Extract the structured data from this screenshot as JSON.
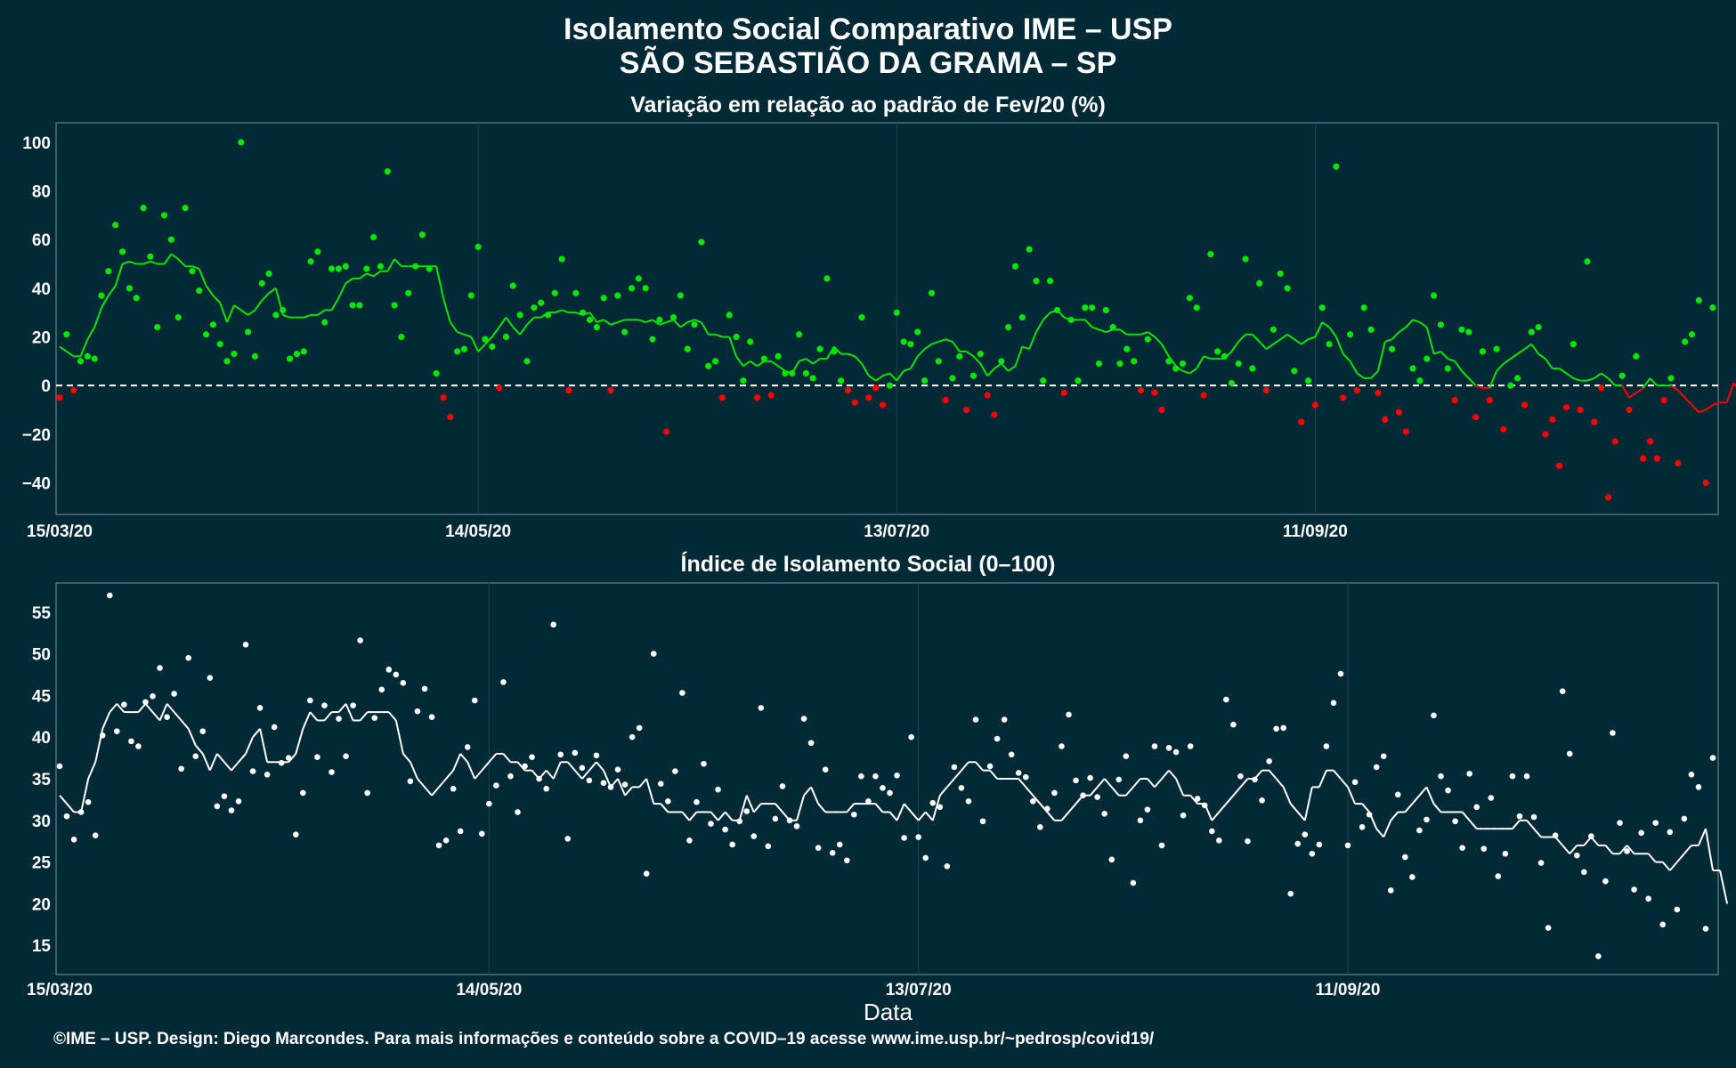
{
  "title_line1": "Isolamento Social Comparativo IME – USP",
  "title_line2": "SÃO SEBASTIÃO DA GRAMA – SP",
  "footer_xlabel": "Data",
  "footer_caption": "©IME – USP. Design: Diego Marcondes. Para mais informações e conteúdo sobre a COVID–19 acesse www.ime.usp.br/~pedrosp/covid19/",
  "colors": {
    "background": "#022a36",
    "positive": "#00e600",
    "negative": "#ff0000",
    "index": "#ffffff",
    "zero_line": "#ffffff"
  },
  "chart_data": [
    {
      "type": "scatter",
      "title": "Variação em relação ao padrão de Fev/20 (%)",
      "x_start": "15/03/20",
      "x_end": "14/11/20",
      "x_ticks": [
        "15/03/20",
        "14/05/20",
        "13/07/20",
        "11/09/20"
      ],
      "y_ticks": [
        100,
        80,
        60,
        40,
        20,
        0,
        -20,
        -40
      ],
      "ylim": [
        -53,
        108
      ],
      "zero_line": true,
      "series": [
        {
          "role": "daily_points",
          "color_rule": "green if value >= 0, red if value < 0",
          "values": [
            -5,
            21,
            -2,
            10,
            12,
            11,
            37,
            47,
            66,
            55,
            40,
            36,
            73,
            53,
            24,
            70,
            60,
            28,
            73,
            47,
            39,
            21,
            25,
            17,
            10,
            13,
            100,
            22,
            12,
            42,
            46,
            29,
            31,
            11,
            13,
            14,
            51,
            55,
            26,
            48,
            48,
            49,
            33,
            33,
            48,
            61,
            49,
            88,
            33,
            20,
            38,
            49,
            62,
            48,
            5,
            -5,
            -13,
            14,
            15,
            37,
            57,
            19,
            16,
            -1,
            20,
            41,
            29,
            10,
            32,
            34,
            29,
            38,
            52,
            -2,
            38,
            30,
            27,
            24,
            36,
            -2,
            37,
            22,
            40,
            44,
            40,
            19,
            27,
            -19,
            28,
            37,
            15,
            25,
            59,
            8,
            10,
            -5,
            29,
            20,
            2,
            18,
            -5,
            11,
            -4,
            12,
            5,
            5,
            21,
            5,
            3,
            15,
            44,
            14,
            2,
            -2,
            -7,
            28,
            -5,
            -1,
            -8,
            0,
            30,
            18,
            17,
            22,
            2,
            38,
            10,
            -6,
            3,
            12,
            -10,
            4,
            13,
            -4,
            -12,
            10,
            24,
            49,
            28,
            56,
            43,
            2,
            43,
            31,
            -3,
            27,
            2,
            32,
            32,
            9,
            31,
            24,
            9,
            15,
            10,
            -2,
            19,
            -3,
            -10,
            10,
            7,
            9,
            36,
            32,
            -4,
            54,
            14,
            12,
            1,
            9,
            52,
            7,
            42,
            -2,
            23,
            46,
            40,
            6,
            -15,
            2,
            -8,
            32,
            17,
            90,
            -5,
            21,
            -2,
            32,
            23,
            -3,
            -14,
            15,
            -11,
            -19,
            7,
            2,
            11,
            37,
            25,
            7,
            -6,
            23,
            22,
            -13,
            14,
            -6,
            15,
            -18,
            0,
            3,
            -8,
            22,
            24,
            -20,
            -14,
            -33,
            -9,
            17,
            -10,
            51,
            -15,
            -1,
            -46,
            -23,
            4,
            -10,
            12,
            -30,
            -23,
            -30,
            -6,
            3,
            -32,
            18,
            21,
            35,
            -40,
            32
          ]
        },
        {
          "role": "moving_average",
          "color_rule": "green if value >= 0, red if value < 0",
          "values": [
            16,
            14,
            12,
            12,
            19,
            24,
            32,
            37,
            41,
            50,
            51,
            50,
            50,
            51,
            50,
            50,
            54,
            52,
            49,
            49,
            48,
            41,
            37,
            34,
            26,
            33,
            31,
            29,
            31,
            35,
            38,
            40,
            29,
            28,
            28,
            28,
            29,
            29,
            31,
            31,
            36,
            42,
            44,
            44,
            46,
            45,
            47,
            47,
            52,
            49,
            49,
            49,
            49,
            49,
            49,
            36,
            26,
            22,
            21,
            20,
            14,
            17,
            20,
            24,
            28,
            24,
            21,
            25,
            28,
            28,
            30,
            30,
            31,
            30,
            30,
            29,
            30,
            26,
            27,
            25,
            26,
            27,
            27,
            27,
            26,
            27,
            25,
            26,
            27,
            24,
            26,
            27,
            26,
            21,
            21,
            20,
            20,
            12,
            8,
            10,
            8,
            10,
            10,
            8,
            6,
            5,
            10,
            11,
            9,
            11,
            11,
            16,
            13,
            13,
            12,
            9,
            4,
            2,
            4,
            5,
            2,
            6,
            7,
            12,
            15,
            17,
            18,
            19,
            18,
            14,
            14,
            12,
            9,
            4,
            7,
            9,
            6,
            8,
            16,
            15,
            22,
            27,
            30,
            31,
            28,
            27,
            27,
            27,
            24,
            23,
            22,
            23,
            23,
            21,
            21,
            21,
            22,
            20,
            17,
            12,
            8,
            6,
            5,
            7,
            12,
            11,
            11,
            11,
            14,
            18,
            21,
            21,
            18,
            15,
            17,
            19,
            21,
            19,
            17,
            19,
            20,
            26,
            24,
            20,
            13,
            10,
            5,
            3,
            3,
            6,
            18,
            19,
            22,
            24,
            27,
            26,
            24,
            13,
            14,
            11,
            10,
            6,
            3,
            0,
            -1,
            -1,
            6,
            9,
            11,
            13,
            15,
            17,
            13,
            11,
            7,
            7,
            5,
            3,
            2,
            2,
            3,
            5,
            3,
            0,
            0,
            -5,
            -3,
            -1,
            3,
            0,
            0,
            0,
            -2,
            -5,
            -8,
            -11,
            -10,
            -8,
            -7,
            -7,
            1,
            -3,
            -5,
            -12,
            -13,
            -12,
            -15,
            -14,
            -5,
            1,
            1,
            6
          ]
        }
      ]
    },
    {
      "type": "scatter",
      "title": "Índice de Isolamento Social (0–100)",
      "x_start": "15/03/20",
      "x_end": "14/11/20",
      "x_ticks": [
        "15/03/20",
        "14/05/20",
        "13/07/20",
        "11/09/20"
      ],
      "y_ticks": [
        55,
        50,
        45,
        40,
        35,
        30,
        25,
        20,
        15
      ],
      "ylim": [
        11.5,
        58.5
      ],
      "series": [
        {
          "role": "daily_points",
          "values": [
            36.5,
            30.5,
            27.7,
            31,
            32.2,
            28.2,
            40.2,
            57,
            40.7,
            43.9,
            39.5,
            38.9,
            44.2,
            44.9,
            48.3,
            42.4,
            45.2,
            36.2,
            49.5,
            37.7,
            40.7,
            47.1,
            31.7,
            32.9,
            31.2,
            32.3,
            51.1,
            35.9,
            43.5,
            35.5,
            41.2,
            36.9,
            37.5,
            28.3,
            33.3,
            44.4,
            37.6,
            43.8,
            35.8,
            42.2,
            37.7,
            43.8,
            51.6,
            33.3,
            42.3,
            45.7,
            48.1,
            47.5,
            46.5,
            34.7,
            43.1,
            45.8,
            42.4,
            27,
            27.6,
            33.8,
            28.7,
            38.8,
            44.4,
            28.4,
            32,
            34.2,
            46.6,
            35.3,
            31,
            36.5,
            37.6,
            35,
            33.8,
            53.5,
            37.9,
            27.8,
            38.1,
            36.3,
            34.8,
            37.8,
            34.5,
            34,
            36.1,
            34.3,
            40,
            41.1,
            23.6,
            50,
            34.4,
            32.3,
            35.9,
            45.3,
            27.6,
            32.2,
            36.8,
            29.6,
            33.7,
            28.9,
            27.1,
            29.9,
            31.1,
            28.1,
            43.5,
            26.9,
            30.2,
            34.1,
            30,
            29.3,
            42.2,
            39.3,
            26.7,
            36.1,
            26.1,
            27.1,
            25.2,
            30.7,
            35.3,
            32.3,
            35.3,
            33.9,
            33.3,
            35.4,
            27.9,
            40,
            28,
            25.5,
            32.1,
            31.6,
            24.5,
            36.4,
            33.9,
            32.3,
            42.1,
            29.9,
            36.5,
            39.8,
            42.1,
            37.9,
            35.7,
            35.2,
            32.3,
            29.2,
            31.4,
            33.3,
            38.9,
            42.7,
            34.8,
            33,
            35.1,
            32.8,
            30.8,
            25.3,
            34.9,
            37.7,
            22.5,
            30,
            31.3,
            38.9,
            27,
            38.7,
            38.2,
            30.6,
            38.9,
            32.6,
            31.8,
            28.7,
            27.6,
            44.5,
            41.5,
            35.3,
            27.5,
            34.9,
            32.4,
            37.1,
            41,
            41.1,
            21.2,
            27.2,
            28.3,
            26,
            27.1,
            38.9,
            44.1,
            47.6,
            27,
            34.6,
            29.2,
            30.7,
            36.4,
            37.7,
            21.6,
            33.1,
            25.6,
            23.2,
            28.8,
            30.1,
            42.6,
            35.3,
            33.6,
            29.9,
            26.7,
            35.6,
            31.6,
            26.6,
            32.7,
            23.3,
            26,
            35.3,
            30.5,
            35.3,
            30.4,
            24.9,
            17.1,
            28.2,
            45.5,
            38,
            25.8,
            23.8,
            28.1,
            13.7,
            22.7,
            40.5,
            29.7,
            26.3,
            21.7,
            28.5,
            20.6,
            29.7,
            17.5,
            28.6,
            19.3,
            30.2,
            35.5,
            34,
            17,
            37.5
          ]
        },
        {
          "role": "moving_average",
          "values": [
            33,
            32,
            31,
            31,
            35,
            37,
            41,
            43,
            44,
            43,
            43,
            43,
            44,
            43,
            42,
            44,
            43,
            42,
            41,
            39,
            38,
            36,
            38,
            37,
            36,
            37,
            38,
            40,
            41,
            37,
            37,
            37,
            37,
            38,
            41,
            43,
            42,
            42,
            43,
            43,
            44,
            42,
            42,
            43,
            43,
            43,
            43,
            42,
            38,
            37,
            35,
            34,
            33,
            34,
            35,
            36,
            38,
            37,
            35,
            36,
            37,
            38,
            38,
            37,
            37,
            36,
            36,
            35,
            36,
            35,
            37,
            37,
            36,
            35,
            36,
            37,
            36,
            34,
            35,
            33,
            34,
            34,
            35,
            32,
            32,
            31,
            31,
            31,
            30,
            31,
            31,
            31,
            30,
            31,
            30,
            30,
            33,
            31,
            32,
            32,
            32,
            31,
            30,
            30,
            33,
            34,
            32,
            31,
            31,
            31,
            31,
            32,
            32,
            32,
            32,
            31,
            31,
            30,
            32,
            31,
            30,
            31,
            30,
            33,
            34,
            35,
            36,
            37,
            37,
            36,
            36,
            35,
            35,
            35,
            35,
            34,
            33,
            32,
            31,
            30,
            30,
            31,
            32,
            33,
            33,
            34,
            35,
            34,
            33,
            33,
            34,
            35,
            35,
            34,
            35,
            36,
            35,
            33,
            33,
            32,
            32,
            30,
            31,
            32,
            33,
            34,
            35,
            35,
            36,
            36,
            35,
            34,
            32,
            31,
            30,
            34,
            34,
            36,
            36,
            35,
            34,
            32,
            32,
            31,
            29,
            28,
            30,
            31,
            31,
            32,
            33,
            34,
            32,
            31,
            31,
            31,
            31,
            30,
            29,
            29,
            29,
            29,
            29,
            29,
            30,
            30,
            29,
            28,
            28,
            28,
            27,
            26,
            27,
            27,
            28,
            27,
            27,
            26,
            26,
            27,
            26,
            26,
            26,
            25,
            25,
            24,
            25,
            26,
            27,
            27,
            29,
            24,
            24,
            20
          ]
        }
      ]
    }
  ]
}
